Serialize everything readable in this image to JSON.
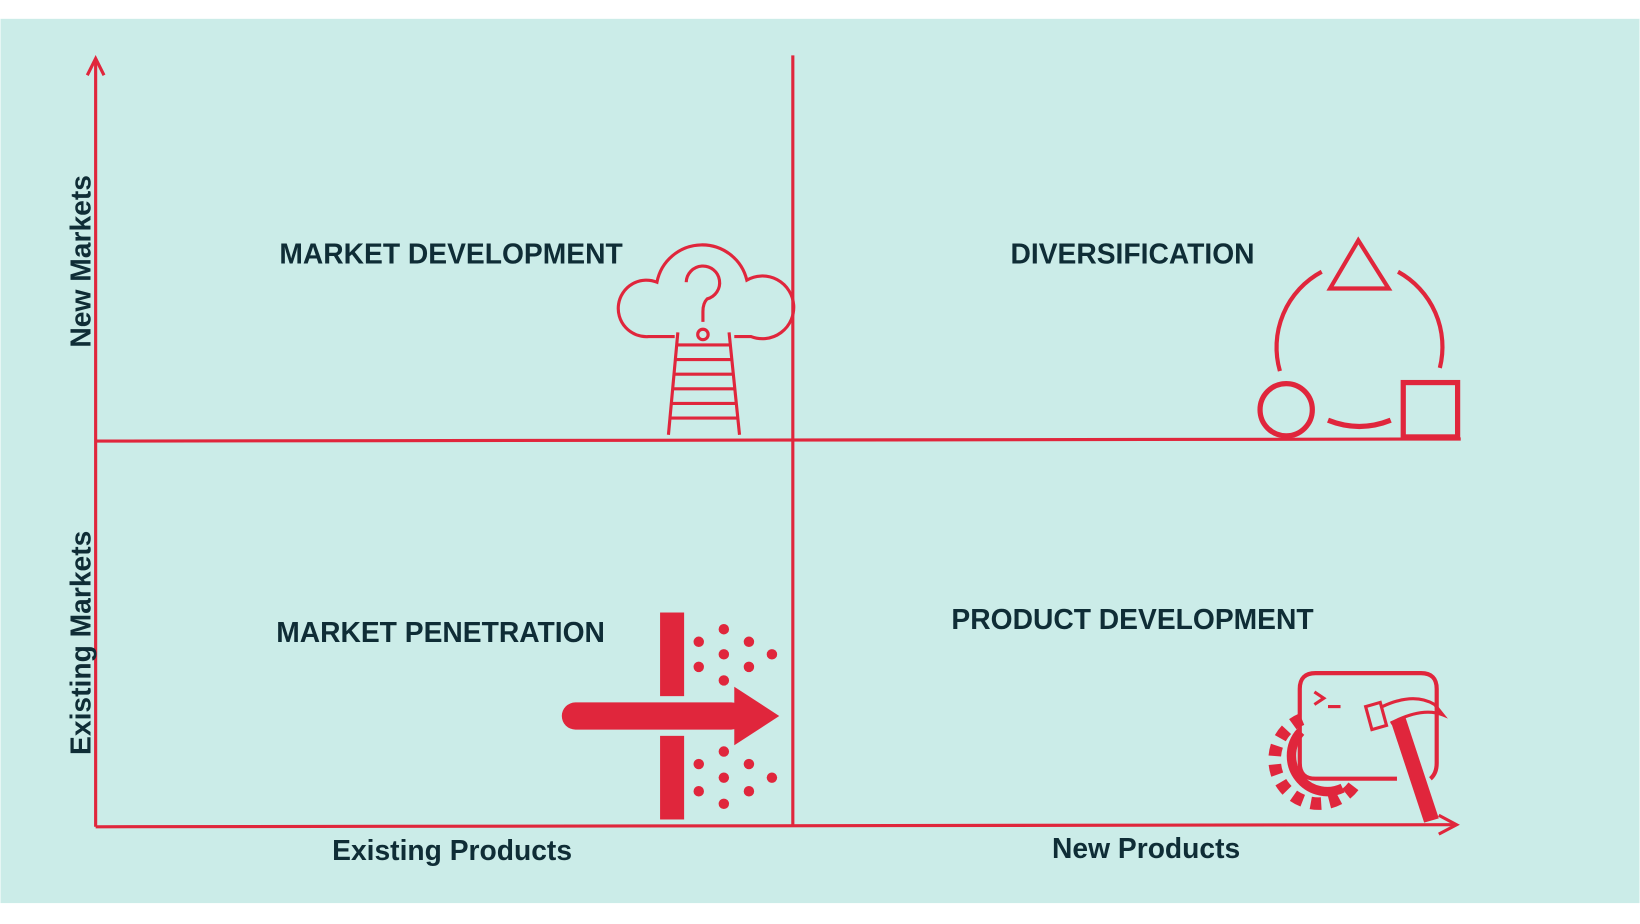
{
  "diagram": {
    "colors": {
      "background": "#cbece8",
      "accent": "#e0263c",
      "text": "#0f2d36"
    },
    "quadrants": {
      "top_left": {
        "label": "MARKET DEVELOPMENT",
        "icon": "cloud-ladder-question-icon"
      },
      "top_right": {
        "label": "DIVERSIFICATION",
        "icon": "shapes-cycle-icon"
      },
      "bottom_left": {
        "label": "MARKET PENETRATION",
        "icon": "arrow-through-wall-icon"
      },
      "bottom_right": {
        "label": "PRODUCT DEVELOPMENT",
        "icon": "terminal-gear-hammer-icon"
      }
    },
    "x_axis": {
      "left_label": "Existing Products",
      "right_label": "New Products"
    },
    "y_axis": {
      "top_label": "New Markets",
      "bottom_label": "Existing Markets"
    }
  }
}
